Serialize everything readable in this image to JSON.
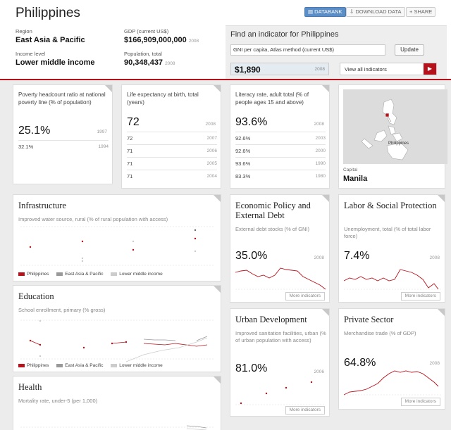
{
  "header": {
    "country": "Philippines",
    "buttons": {
      "databank": "DATABANK",
      "download": "DOWNLOAD DATA",
      "share": "SHARE"
    },
    "region_label": "Region",
    "region": "East Asia & Pacific",
    "income_label": "Income level",
    "income": "Lower middle income",
    "gdp_label": "GDP (current US$)",
    "gdp": "$166,909,000,000",
    "gdp_year": "2008",
    "pop_label": "Population, total",
    "pop": "90,348,437",
    "pop_year": "2008"
  },
  "finder": {
    "title": "Find an indicator for Philippines",
    "input_value": "GNI per capita, Atlas method (current US$)",
    "update": "Update",
    "result": "$1,890",
    "result_year": "2008",
    "view_all": "View all indicators"
  },
  "poverty": {
    "title": "Poverty headcount ratio at national poverty line (% of population)",
    "value": "25.1%",
    "year": "1997",
    "rows": [
      {
        "v": "32.1%",
        "y": "1994"
      }
    ]
  },
  "life": {
    "title": "Life expectancy at birth, total (years)",
    "value": "72",
    "year": "2008",
    "rows": [
      {
        "v": "72",
        "y": "2007"
      },
      {
        "v": "71",
        "y": "2006"
      },
      {
        "v": "71",
        "y": "2005"
      },
      {
        "v": "71",
        "y": "2004"
      }
    ]
  },
  "literacy": {
    "title": "Literacy rate, adult total (% of people ages 15 and above)",
    "value": "93.6%",
    "year": "2008",
    "rows": [
      {
        "v": "92.6%",
        "y": "2003"
      },
      {
        "v": "92.6%",
        "y": "2000"
      },
      {
        "v": "93.6%",
        "y": "1990"
      },
      {
        "v": "83.3%",
        "y": "1980"
      }
    ]
  },
  "map": {
    "label": "Philippines",
    "capital_label": "Capital",
    "capital": "Manila"
  },
  "legend": {
    "a": "Philippines",
    "b": "East Asia & Pacific",
    "c": "Lower middle income"
  },
  "colors": {
    "accent": "#b5121b",
    "eap": "#999999",
    "lmi": "#cccccc"
  },
  "infrastructure": {
    "title": "Infrastructure",
    "sub": "Improved water source, rural (% of rural population with access)"
  },
  "education": {
    "title": "Education",
    "sub": "School enrollment, primary (% gross)"
  },
  "health": {
    "title": "Health",
    "sub": "Mortality rate, under-5 (per 1,000)"
  },
  "econ": {
    "title": "Economic Policy and External Debt",
    "sub": "External debt stocks (% of GNI)",
    "value": "35.0%",
    "year": "2008",
    "more": "More indicators"
  },
  "labor": {
    "title": "Labor & Social Protection",
    "sub": "Unemployment, total (% of total labor force)",
    "value": "7.4%",
    "year": "2008",
    "more": "More indicators"
  },
  "urban": {
    "title": "Urban Development",
    "sub": "Improved sanitation facilities, urban (% of urban population with access)",
    "value": "81.0%",
    "year": "2006",
    "more": "More indicators"
  },
  "private": {
    "title": "Private Sector",
    "sub": "Merchandise trade (% of GDP)",
    "value": "64.8%",
    "year": "2008",
    "more": "More indicators"
  }
}
